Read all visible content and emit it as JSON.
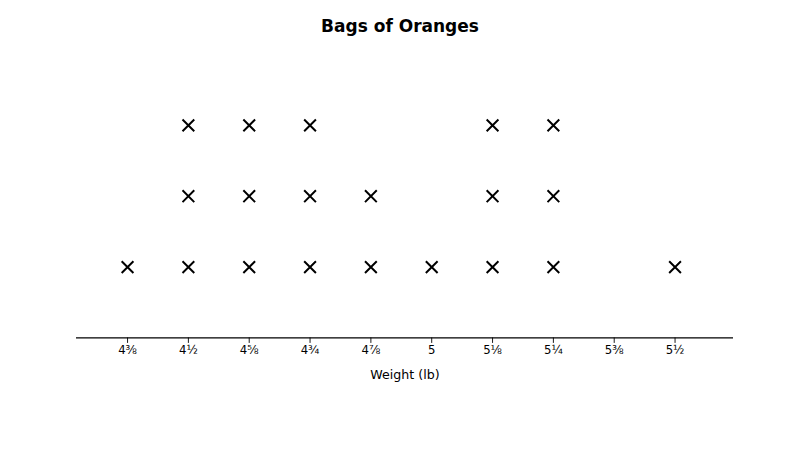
{
  "chart_data": {
    "type": "dot_plot",
    "title": "Bags of Oranges",
    "xlabel": "Weight (lb)",
    "x": [
      4.375,
      4.5,
      4.625,
      4.75,
      4.875,
      5.0,
      5.125,
      5.25,
      5.375,
      5.5
    ],
    "values": [
      1,
      3,
      3,
      3,
      2,
      1,
      3,
      3,
      0,
      1
    ],
    "xlim": [
      4.27,
      5.62
    ],
    "xticks": [
      {
        "value": 4.375,
        "label": "4⅜"
      },
      {
        "value": 4.5,
        "label": "4½"
      },
      {
        "value": 4.625,
        "label": "4⅝"
      },
      {
        "value": 4.75,
        "label": "4¾"
      },
      {
        "value": 4.875,
        "label": "4⅞"
      },
      5,
      {
        "value": 5.125,
        "label": "5⅛"
      },
      {
        "value": 5.25,
        "label": "5¼"
      },
      {
        "value": 5.375,
        "label": "5⅜"
      },
      {
        "value": 5.5,
        "label": "5½"
      }
    ],
    "ylim": [
      0,
      4
    ],
    "marker": "x",
    "color": "#000000",
    "tick_labels": "x"
  }
}
